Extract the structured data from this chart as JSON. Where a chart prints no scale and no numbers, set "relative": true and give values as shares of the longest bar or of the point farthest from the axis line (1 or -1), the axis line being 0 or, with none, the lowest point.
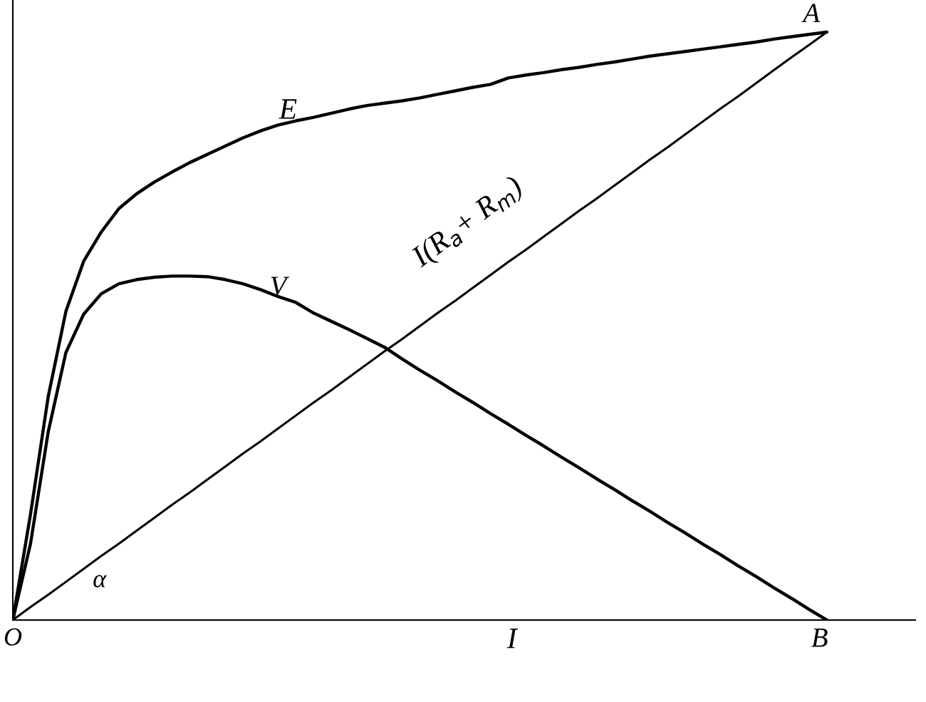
{
  "chart_data": {
    "type": "line",
    "relative": true,
    "xlabel": "I",
    "categories": [
      null,
      null,
      null,
      null,
      null,
      null,
      null,
      null,
      null,
      null,
      null,
      null,
      null,
      null,
      null,
      null,
      null,
      null,
      null,
      null,
      null,
      null,
      null,
      null,
      null,
      null,
      null,
      null,
      null,
      null,
      null,
      null,
      null,
      null,
      null,
      null,
      null,
      null,
      null,
      null,
      null,
      null,
      null,
      null,
      null,
      null,
      null,
      null,
      null,
      null,
      null,
      null
    ],
    "series": [
      {
        "color": "#000000",
        "values": [
          0,
          0.18,
          0.38,
          0.525,
          0.61,
          0.66,
          0.7,
          0.725,
          0.745,
          0.762,
          0.778,
          0.792,
          0.806,
          0.82,
          0.832,
          0.842,
          0.849,
          0.855,
          0.862,
          0.869,
          0.875,
          0.879,
          0.883,
          0.888,
          0.894,
          0.9,
          0.906,
          0.911,
          0.922,
          0.927,
          0.931,
          0.936,
          0.94,
          0.945,
          0.949,
          0.954,
          0.959,
          0.963,
          0.967,
          0.971,
          0.975,
          0.979,
          0.983,
          0.988,
          0.992,
          0.996,
          1,
          null,
          null,
          null,
          null,
          null
        ]
      },
      {
        "color": "#000000",
        "values": [
          0,
          0.13,
          0.32,
          0.455,
          0.52,
          0.555,
          0.572,
          0.579,
          0.583,
          0.585,
          0.585,
          0.584,
          0.579,
          0.572,
          0.562,
          0.55,
          0.54,
          0.522,
          0.508,
          0.494,
          0.479,
          0.464,
          0.444,
          0.425,
          0.407,
          0.388,
          0.37,
          0.351,
          0.333,
          0.314,
          0.296,
          0.277,
          0.259,
          0.24,
          0.222,
          0.203,
          0.185,
          0.166,
          0.148,
          0.129,
          0.111,
          0.092,
          0.074,
          0.055,
          0.037,
          0.018,
          0,
          null,
          null,
          null,
          null,
          null
        ]
      },
      {
        "color": "#000000",
        "values": [
          0,
          0.022,
          0.043,
          0.065,
          0.087,
          0.109,
          0.13,
          0.152,
          0.174,
          0.196,
          0.217,
          0.239,
          0.261,
          0.283,
          0.304,
          0.326,
          0.348,
          0.37,
          0.391,
          0.413,
          0.435,
          0.457,
          0.478,
          0.5,
          0.522,
          0.543,
          0.565,
          0.587,
          0.609,
          0.63,
          0.652,
          0.674,
          0.696,
          0.717,
          0.739,
          0.761,
          0.783,
          0.804,
          0.826,
          0.848,
          0.87,
          0.891,
          0.913,
          0.935,
          0.957,
          0.978,
          1,
          null,
          null,
          null,
          null,
          null
        ]
      }
    ],
    "annotations": [
      "E",
      "V",
      "I(R$_{a}$+ R$_{m}$)",
      "A",
      "B",
      "O",
      "α"
    ]
  }
}
